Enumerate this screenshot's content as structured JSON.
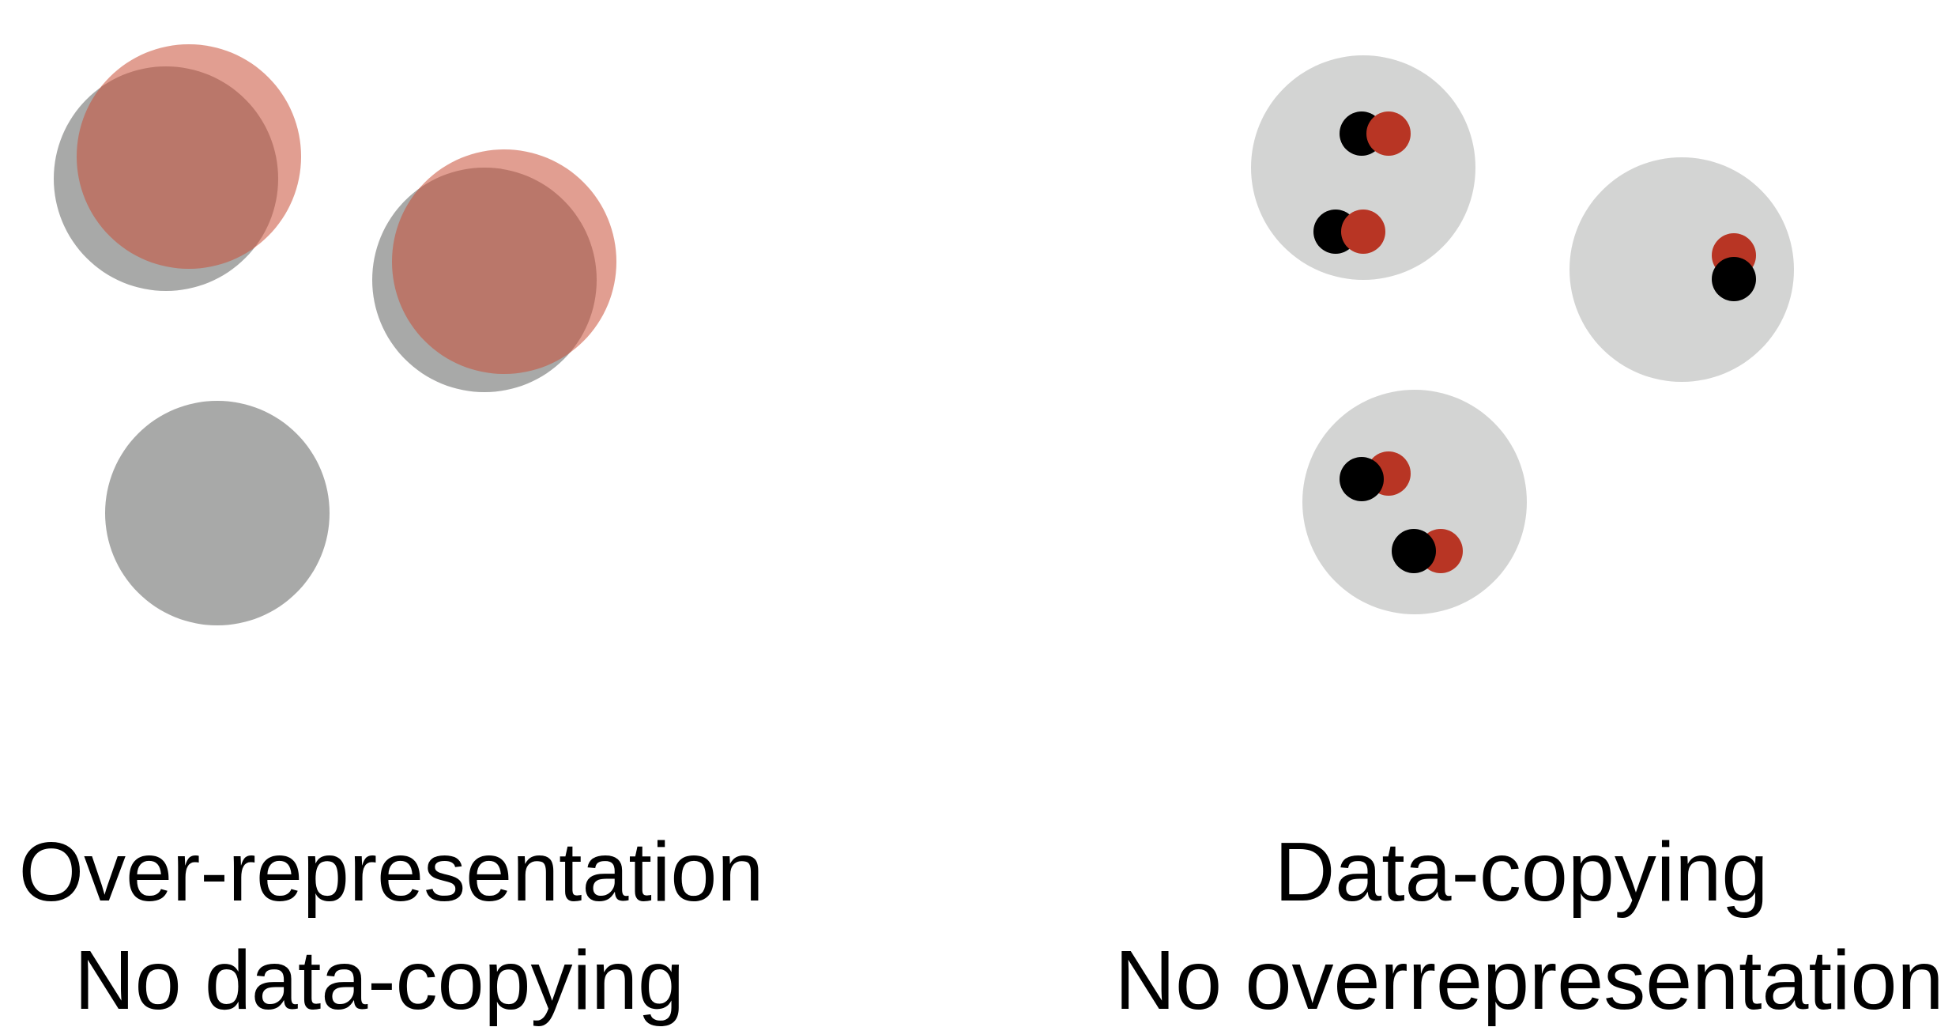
{
  "colors": {
    "background": "#ffffff",
    "real_region_dark": "#a8a9a8",
    "real_region_light": "#d3d4d3",
    "generated_region_overlay": "#c84f36",
    "overlap_region": "#b07164",
    "real_point": "#000000",
    "generated_point": "#b83524"
  },
  "panels": [
    {
      "id": "left",
      "caption_line1": "Over-representation",
      "caption_line2": "No data-copying"
    },
    {
      "id": "right",
      "caption_line1": "Data-copying",
      "caption_line2": "No overrepresentation"
    }
  ]
}
